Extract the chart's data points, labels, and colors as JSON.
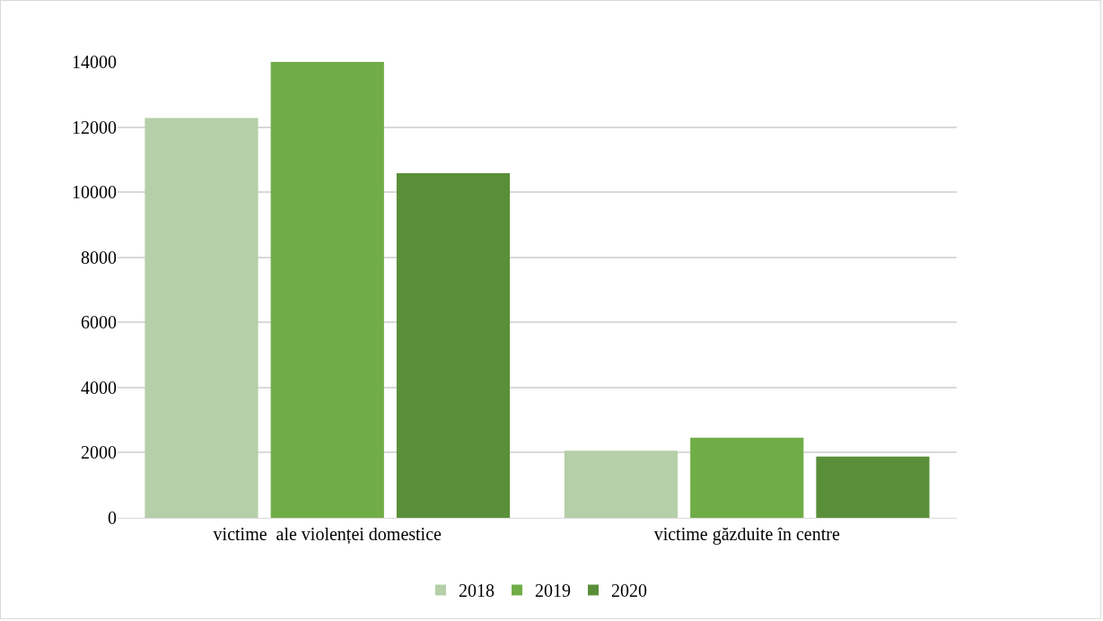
{
  "chart_data": {
    "type": "bar",
    "categories": [
      "victime  ale violenței domestice",
      "victime găzduite în centre"
    ],
    "series": [
      {
        "name": "2018",
        "color": "#b5cfa8",
        "values": [
          12280,
          2060
        ]
      },
      {
        "name": "2019",
        "color": "#70ad47",
        "values": [
          14000,
          2460
        ]
      },
      {
        "name": "2020",
        "color": "#5a8f3a",
        "values": [
          10580,
          1880
        ]
      }
    ],
    "ylim": [
      0,
      14000
    ],
    "yticks": [
      0,
      2000,
      4000,
      6000,
      8000,
      10000,
      12000,
      14000
    ],
    "grid": "y",
    "legend": "bottom"
  }
}
